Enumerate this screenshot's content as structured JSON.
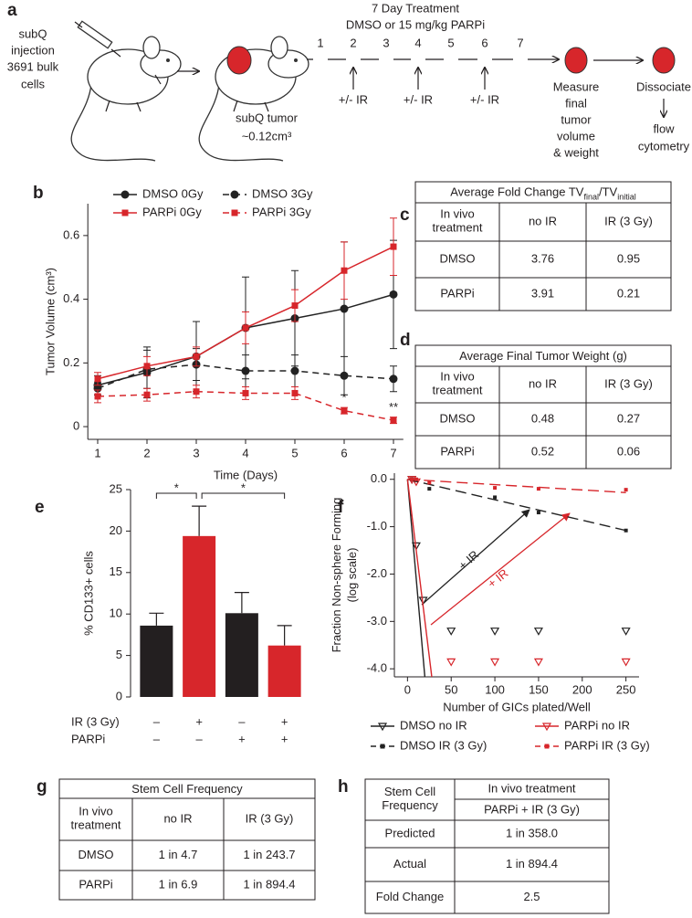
{
  "panel_labels": [
    "a",
    "b",
    "c",
    "d",
    "e",
    "f",
    "g",
    "h"
  ],
  "diagram": {
    "injection": [
      "subQ",
      "injection",
      "3691 bulk",
      "cells"
    ],
    "treatment_title": "7 Day Treatment",
    "treatment_subtitle": "DMSO or 15 mg/kg PARPi",
    "days": [
      "1",
      "2",
      "3",
      "4",
      "5",
      "6",
      "7"
    ],
    "ir_labels": [
      "+/- IR",
      "+/- IR",
      "+/- IR"
    ],
    "tumor": [
      "subQ tumor",
      "~0.12cm³"
    ],
    "measure": [
      "Measure",
      "final",
      "tumor",
      "volume",
      "& weight"
    ],
    "dissociate": "Dissociate",
    "flow": [
      "flow",
      "cytometry"
    ]
  },
  "chart_data": [
    {
      "type": "line",
      "xlabel": "Time (Days)",
      "ylabel": "Tumor Volume (cm³)",
      "x": [
        1,
        2,
        3,
        4,
        5,
        6,
        7
      ],
      "xlim": [
        0.8,
        7.2
      ],
      "xticks": [
        1,
        2,
        3,
        4,
        5,
        6,
        7
      ],
      "ylim": [
        -0.04,
        0.7
      ],
      "yticks": [
        0,
        0.2,
        0.4,
        0.6
      ],
      "series": [
        {
          "name": "DMSO 0Gy",
          "color": "#222222",
          "dashed": false,
          "marker": "circle",
          "values": [
            0.13,
            0.17,
            0.22,
            0.31,
            0.34,
            0.37,
            0.415
          ],
          "errors": [
            0.03,
            0.08,
            0.11,
            0.16,
            0.15,
            0.21,
            0.17
          ]
        },
        {
          "name": "DMSO 3Gy",
          "color": "#222222",
          "dashed": true,
          "marker": "circle",
          "values": [
            0.12,
            0.18,
            0.195,
            0.175,
            0.175,
            0.16,
            0.15
          ],
          "errors": [
            0.02,
            0.06,
            0.05,
            0.05,
            0.05,
            0.06,
            0.04
          ]
        },
        {
          "name": "PARPi 0Gy",
          "color": "#d7262b",
          "dashed": false,
          "marker": "square",
          "values": [
            0.15,
            0.19,
            0.22,
            0.31,
            0.38,
            0.49,
            0.565
          ],
          "errors": [
            0.02,
            0.03,
            0.03,
            0.05,
            0.05,
            0.09,
            0.09
          ]
        },
        {
          "name": "PARPi 3Gy",
          "color": "#d7262b",
          "dashed": true,
          "marker": "square",
          "values": [
            0.095,
            0.1,
            0.11,
            0.105,
            0.105,
            0.05,
            0.02
          ],
          "errors": [
            0.02,
            0.02,
            0.02,
            0.02,
            0.02,
            0.01,
            0.01
          ]
        }
      ],
      "annotations": [
        {
          "text": "*",
          "x": 6
        },
        {
          "text": "**",
          "x": 7
        }
      ]
    },
    {
      "type": "bar",
      "ylabel": "% CD133+ cells",
      "values": [
        8.6,
        19.4,
        10.1,
        6.2
      ],
      "errors": [
        1.5,
        3.6,
        2.5,
        2.4
      ],
      "colors": [
        "#231f20",
        "#d7262b",
        "#231f20",
        "#d7262b"
      ],
      "ylim": [
        0,
        25
      ],
      "yticks": [
        0,
        5,
        10,
        15,
        20,
        25
      ],
      "conditions": [
        {
          "name": "IR (3 Gy)",
          "values": [
            "–",
            "+",
            "–",
            "+"
          ]
        },
        {
          "name": "PARPi",
          "values": [
            "–",
            "–",
            "+",
            "+"
          ]
        }
      ],
      "significance": [
        {
          "text": "*",
          "from": 0,
          "to": 1
        },
        {
          "text": "*",
          "from": 1,
          "to": 3
        }
      ]
    },
    {
      "type": "scatter",
      "xlabel": "Number of GICs plated/Well",
      "ylabel": [
        "Fraction Non-sphere Forming",
        "(log scale)"
      ],
      "xlim": [
        -15,
        265
      ],
      "xticks": [
        0,
        50,
        100,
        150,
        200,
        250
      ],
      "ylim": [
        -4.17,
        0.13
      ],
      "yticks": [
        {
          "value": 0,
          "label": "0.0"
        },
        {
          "value": -1,
          "label": "-1.0"
        },
        {
          "value": -2,
          "label": "-2.0"
        },
        {
          "value": -3,
          "label": "-3.0"
        },
        {
          "value": -4,
          "label": "-4.0"
        }
      ],
      "series": [
        {
          "name": "DMSO no IR",
          "color": "#222222",
          "dashed": false,
          "marker": "triangle-open",
          "x": [
            5,
            10,
            18,
            50,
            100,
            150,
            250
          ],
          "values": [
            0,
            -1.4,
            -2.55,
            -3.2,
            -3.2,
            -3.2,
            -3.2
          ],
          "fit_x": [
            0,
            20
          ],
          "fit_values": [
            0,
            -4.2
          ]
        },
        {
          "name": "PARPi no IR",
          "color": "#d7262b",
          "dashed": false,
          "marker": "triangle-open",
          "x": [
            5,
            10,
            50,
            100,
            150,
            250
          ],
          "values": [
            0,
            -0.05,
            -3.85,
            -3.85,
            -3.85,
            -3.85
          ],
          "fit_x": [
            0,
            28
          ],
          "fit_values": [
            0,
            -4.2
          ]
        },
        {
          "name": "DMSO IR (3 Gy)",
          "color": "#222222",
          "dashed": true,
          "marker": "square",
          "x": [
            5,
            10,
            25,
            100,
            150,
            250
          ],
          "values": [
            0,
            -0.02,
            -0.2,
            -0.38,
            -0.7,
            -1.08
          ],
          "fit_x": [
            0,
            250
          ],
          "fit_values": [
            0,
            -1.08
          ]
        },
        {
          "name": "PARPi IR (3 Gy)",
          "color": "#d7262b",
          "dashed": true,
          "marker": "square",
          "x": [
            5,
            10,
            25,
            100,
            150,
            250
          ],
          "values": [
            0,
            0,
            -0.07,
            -0.18,
            -0.2,
            -0.22
          ],
          "fit_x": [
            0,
            250
          ],
          "fit_values": [
            0,
            -0.28
          ]
        }
      ],
      "annotations": [
        {
          "text": "+ IR",
          "color": "#222222"
        },
        {
          "text": "+ IR",
          "color": "#d7262b"
        }
      ]
    }
  ],
  "tables": [
    {
      "title": [
        "Average Fold Change TV",
        "final",
        "/TV",
        "initial"
      ],
      "header": [
        [
          "In vivo",
          "treatment"
        ],
        "no IR",
        "IR (3 Gy)"
      ],
      "rows": [
        [
          "DMSO",
          "3.76",
          "0.95"
        ],
        [
          "PARPi",
          "3.91",
          "0.21"
        ]
      ]
    },
    {
      "title": "Average Final Tumor Weight (g)",
      "header": [
        [
          "In vivo",
          "treatment"
        ],
        "no IR",
        "IR (3 Gy)"
      ],
      "rows": [
        [
          "DMSO",
          "0.48",
          "0.27"
        ],
        [
          "PARPi",
          "0.52",
          "0.06"
        ]
      ]
    },
    {
      "title": "Stem Cell Frequency",
      "header": [
        [
          "In vivo",
          "treatment"
        ],
        "no IR",
        "IR (3 Gy)"
      ],
      "rows": [
        [
          "DMSO",
          "1 in 4.7",
          "1 in 243.7"
        ],
        [
          "PARPi",
          "1 in 6.9",
          "1 in 894.4"
        ]
      ]
    },
    {
      "header_left": [
        "Stem Cell",
        "Frequency"
      ],
      "header_right": [
        "In vivo treatment",
        "PARPi + IR (3 Gy)"
      ],
      "rows": [
        [
          "Predicted",
          "1 in 358.0"
        ],
        [
          "Actual",
          "1 in 894.4"
        ],
        [
          "Fold Change",
          "2.5"
        ]
      ]
    }
  ]
}
